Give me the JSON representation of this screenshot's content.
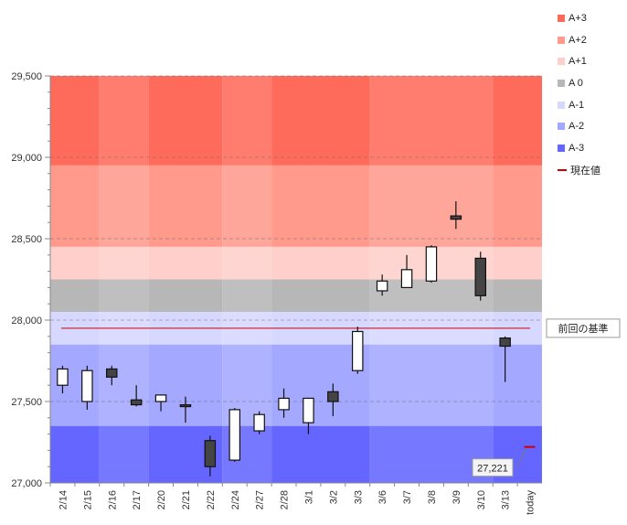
{
  "chart_data": {
    "type": "candlestick",
    "ylim": [
      27000,
      29500
    ],
    "y_ticks": [
      "27,000",
      "27,500",
      "28,000",
      "28,500",
      "29,000",
      "29,500"
    ],
    "categories": [
      "2/14",
      "2/15",
      "2/16",
      "2/17",
      "2/20",
      "2/21",
      "2/22",
      "2/24",
      "2/27",
      "2/28",
      "3/1",
      "3/2",
      "3/3",
      "3/6",
      "3/7",
      "3/8",
      "3/9",
      "3/10",
      "3/13",
      "today"
    ],
    "candles": [
      {
        "open": 27600,
        "close": 27700,
        "high": 27720,
        "low": 27550
      },
      {
        "open": 27500,
        "close": 27690,
        "high": 27720,
        "low": 27450
      },
      {
        "open": 27700,
        "close": 27650,
        "high": 27720,
        "low": 27600
      },
      {
        "open": 27510,
        "close": 27480,
        "high": 27600,
        "low": 27470
      },
      {
        "open": 27500,
        "close": 27540,
        "high": 27540,
        "low": 27440
      },
      {
        "open": 27480,
        "close": 27470,
        "high": 27530,
        "low": 27370
      },
      {
        "open": 27260,
        "close": 27100,
        "high": 27290,
        "low": 27040
      },
      {
        "open": 27140,
        "close": 27450,
        "high": 27460,
        "low": 27130
      },
      {
        "open": 27320,
        "close": 27420,
        "high": 27440,
        "low": 27300
      },
      {
        "open": 27450,
        "close": 27520,
        "high": 27580,
        "low": 27400
      },
      {
        "open": 27370,
        "close": 27520,
        "high": 27520,
        "low": 27300
      },
      {
        "open": 27560,
        "close": 27500,
        "high": 27610,
        "low": 27410
      },
      {
        "open": 27690,
        "close": 27930,
        "high": 27960,
        "low": 27670
      },
      {
        "open": 28180,
        "close": 28240,
        "high": 28280,
        "low": 28150
      },
      {
        "open": 28200,
        "close": 28310,
        "high": 28400,
        "low": 28200
      },
      {
        "open": 28240,
        "close": 28450,
        "high": 28460,
        "low": 28230
      },
      {
        "open": 28640,
        "close": 28620,
        "high": 28730,
        "low": 28560
      },
      {
        "open": 28380,
        "close": 28150,
        "high": 28420,
        "low": 28120
      },
      {
        "open": 27890,
        "close": 27840,
        "high": 27900,
        "low": 27620
      },
      {
        "open": null,
        "close": null,
        "high": null,
        "low": null
      }
    ],
    "bands": [
      {
        "label": "A+3",
        "from": 28950,
        "to": 29500,
        "color": "#ff6b5b"
      },
      {
        "label": "A+2",
        "from": 28450,
        "to": 28950,
        "color": "#ff9a8c"
      },
      {
        "label": "A+1",
        "from": 28250,
        "to": 28450,
        "color": "#ffd0cb"
      },
      {
        "label": "A 0",
        "from": 28050,
        "to": 28250,
        "color": "#b7b7b7"
      },
      {
        "label": "A-1",
        "from": 27850,
        "to": 28050,
        "color": "#d6d8ff"
      },
      {
        "label": "A-2",
        "from": 27350,
        "to": 27850,
        "color": "#a4a8ff"
      },
      {
        "label": "A-3",
        "from": 27000,
        "to": 27350,
        "color": "#6466ff"
      }
    ],
    "current_value_line": {
      "label": "現在値",
      "value": 27221,
      "color": "#cc0000"
    },
    "base_line": {
      "label": "前回の基準",
      "value": 27950,
      "color": "#cc0000"
    },
    "current_value_text": "27,221",
    "legend": [
      "A+3",
      "A+2",
      "A+1",
      "A 0",
      "A-1",
      "A-2",
      "A-3",
      "現在値"
    ],
    "legend_placement": "right",
    "grid": true
  }
}
